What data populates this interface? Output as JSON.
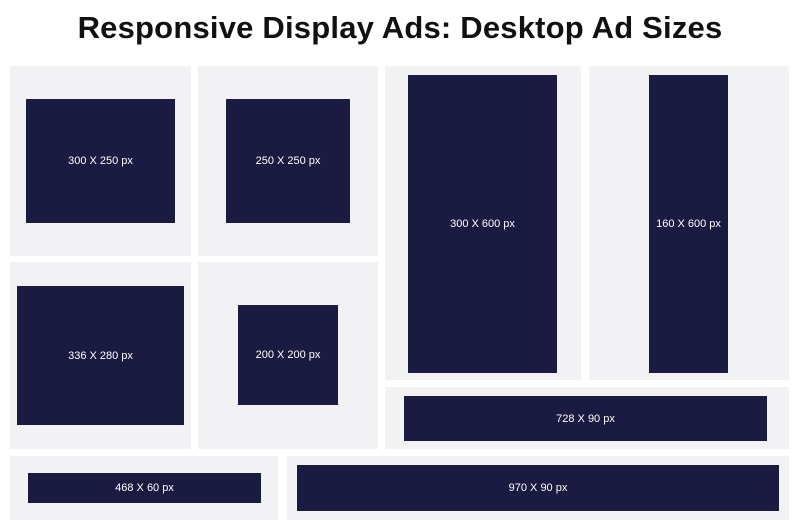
{
  "title": "Responsive Display Ads: Desktop Ad Sizes",
  "colors": {
    "panel_background": "#f2f2f4",
    "ad_fill": "#1b1b42",
    "ad_text": "#ffffff"
  },
  "ads": {
    "ad_300x250": "300 X 250 px",
    "ad_250x250": "250 X 250 px",
    "ad_300x600": "300 X 600 px",
    "ad_160x600": "160 X 600 px",
    "ad_336x280": "336 X 280 px",
    "ad_200x200": "200 X 200 px",
    "ad_728x90": "728 X 90 px",
    "ad_468x60": "468 X 60 px",
    "ad_970x90": "970 X 90 px"
  }
}
